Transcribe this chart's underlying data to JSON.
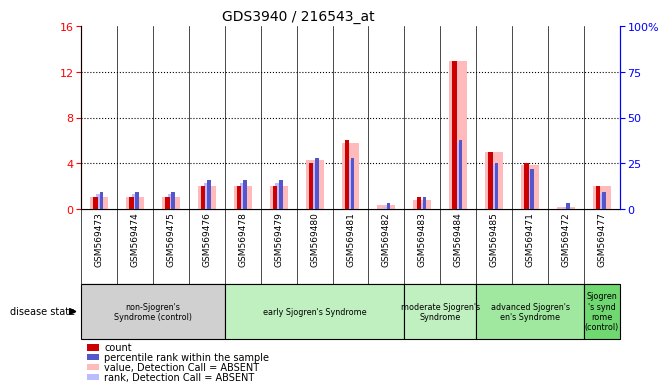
{
  "title": "GDS3940 / 216543_at",
  "samples": [
    "GSM569473",
    "GSM569474",
    "GSM569475",
    "GSM569476",
    "GSM569478",
    "GSM569479",
    "GSM569480",
    "GSM569481",
    "GSM569482",
    "GSM569483",
    "GSM569484",
    "GSM569485",
    "GSM569471",
    "GSM569472",
    "GSM569477"
  ],
  "count_values": [
    1,
    1,
    1,
    2,
    2,
    2,
    4,
    6,
    0,
    1,
    13,
    5,
    4,
    0,
    2
  ],
  "rank_values": [
    1.5,
    1.5,
    1.5,
    2.5,
    2.5,
    2.5,
    4.5,
    4.5,
    0.5,
    1.0,
    6.0,
    4.0,
    3.5,
    0.5,
    1.5
  ],
  "absent_value_values": [
    1.0,
    1.0,
    1.0,
    2.0,
    2.0,
    2.0,
    4.3,
    5.8,
    0.3,
    0.8,
    13.0,
    5.0,
    3.8,
    0.2,
    2.0
  ],
  "absent_rank_values": [
    1.3,
    1.3,
    1.3,
    2.3,
    2.3,
    2.3,
    4.0,
    4.3,
    0.2,
    0.5,
    5.8,
    3.9,
    3.5,
    0.2,
    1.3
  ],
  "ylim_left": [
    0,
    16
  ],
  "ylim_right": [
    0,
    100
  ],
  "yticks_left": [
    0,
    4,
    8,
    12,
    16
  ],
  "yticks_right": [
    0,
    25,
    50,
    75,
    100
  ],
  "groups": [
    {
      "label": "non-Sjogren's\nSyndrome (control)",
      "start": 0,
      "end": 4,
      "color": "#d0d0d0"
    },
    {
      "label": "early Sjogren's Syndrome",
      "start": 4,
      "end": 9,
      "color": "#c0f0c0"
    },
    {
      "label": "moderate Sjogren's\nSyndrome",
      "start": 9,
      "end": 11,
      "color": "#c0f0c0"
    },
    {
      "label": "advanced Sjogren's\nen's Syndrome",
      "start": 11,
      "end": 14,
      "color": "#a0e8a0"
    },
    {
      "label": "Sjogren\n's synd\nrome\n(control)",
      "start": 14,
      "end": 15,
      "color": "#70d870"
    }
  ],
  "color_count": "#cc0000",
  "color_rank": "#5555cc",
  "color_absent_value": "#ffbbbb",
  "color_absent_rank": "#bbbbff",
  "tick_bg_color": "#cccccc",
  "plot_bg_color": "#ffffff",
  "legend_items": [
    [
      "#cc0000",
      "count"
    ],
    [
      "#5555cc",
      "percentile rank within the sample"
    ],
    [
      "#ffbbbb",
      "value, Detection Call = ABSENT"
    ],
    [
      "#bbbbff",
      "rank, Detection Call = ABSENT"
    ]
  ]
}
